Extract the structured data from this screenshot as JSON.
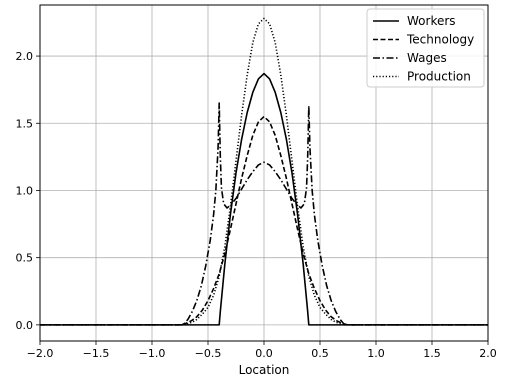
{
  "chart_data": {
    "type": "line",
    "title": "",
    "xlabel": "Location",
    "ylabel": "",
    "xlim": [
      -2.0,
      2.0
    ],
    "ylim": [
      -0.12,
      2.38
    ],
    "grid": true,
    "legend_position": "top-right",
    "x_ticks": [
      -2.0,
      -1.5,
      -1.0,
      -0.5,
      0.0,
      0.5,
      1.0,
      1.5,
      2.0
    ],
    "x_tick_labels": [
      "−2.0",
      "−1.5",
      "−1.0",
      "−0.5",
      "0.0",
      "0.5",
      "1.0",
      "1.5",
      "2.0"
    ],
    "y_ticks": [
      0.0,
      0.5,
      1.0,
      1.5,
      2.0
    ],
    "y_tick_labels": [
      "0.0",
      "0.5",
      "1.0",
      "1.5",
      "2.0"
    ],
    "series": [
      {
        "name": "Workers",
        "dash": "solid",
        "x": [
          -2.0,
          -0.4,
          -0.39,
          -0.35,
          -0.3,
          -0.25,
          -0.2,
          -0.15,
          -0.1,
          -0.05,
          0.0,
          0.05,
          0.1,
          0.15,
          0.2,
          0.25,
          0.3,
          0.35,
          0.39,
          0.4,
          2.0
        ],
        "y": [
          0.0,
          0.0,
          0.1,
          0.45,
          0.82,
          1.13,
          1.38,
          1.58,
          1.73,
          1.83,
          1.87,
          1.83,
          1.73,
          1.58,
          1.38,
          1.13,
          0.82,
          0.45,
          0.1,
          0.0,
          0.0
        ]
      },
      {
        "name": "Technology",
        "dash": "dashed",
        "x": [
          -2.0,
          -0.75,
          -0.7,
          -0.65,
          -0.6,
          -0.55,
          -0.5,
          -0.45,
          -0.4,
          -0.35,
          -0.3,
          -0.25,
          -0.2,
          -0.15,
          -0.1,
          -0.05,
          0.0,
          0.05,
          0.1,
          0.15,
          0.2,
          0.25,
          0.3,
          0.35,
          0.4,
          0.45,
          0.5,
          0.55,
          0.6,
          0.65,
          0.7,
          0.75,
          2.0
        ],
        "y": [
          0.0,
          0.0,
          0.01,
          0.03,
          0.06,
          0.11,
          0.18,
          0.27,
          0.38,
          0.53,
          0.71,
          0.9,
          1.09,
          1.26,
          1.41,
          1.51,
          1.55,
          1.51,
          1.41,
          1.26,
          1.09,
          0.9,
          0.71,
          0.53,
          0.38,
          0.27,
          0.18,
          0.11,
          0.06,
          0.03,
          0.01,
          0.0,
          0.0
        ]
      },
      {
        "name": "Wages",
        "dash": "dashdot",
        "x": [
          -2.0,
          -0.72,
          -0.68,
          -0.64,
          -0.6,
          -0.56,
          -0.52,
          -0.48,
          -0.45,
          -0.43,
          -0.41,
          -0.4,
          -0.39,
          -0.38,
          -0.36,
          -0.33,
          -0.3,
          -0.25,
          -0.2,
          -0.15,
          -0.1,
          -0.05,
          0.0,
          0.05,
          0.1,
          0.15,
          0.2,
          0.25,
          0.3,
          0.33,
          0.36,
          0.38,
          0.39,
          0.4,
          0.41,
          0.43,
          0.45,
          0.48,
          0.52,
          0.56,
          0.6,
          0.64,
          0.68,
          0.72,
          2.0
        ],
        "y": [
          0.0,
          0.0,
          0.04,
          0.1,
          0.18,
          0.29,
          0.44,
          0.63,
          0.82,
          1.0,
          1.32,
          1.65,
          1.25,
          1.02,
          0.9,
          0.87,
          0.89,
          0.94,
          1.01,
          1.08,
          1.14,
          1.19,
          1.21,
          1.19,
          1.14,
          1.08,
          1.01,
          0.94,
          0.89,
          0.87,
          0.9,
          1.02,
          1.25,
          1.63,
          1.32,
          1.0,
          0.82,
          0.63,
          0.44,
          0.29,
          0.18,
          0.1,
          0.04,
          0.0,
          0.0
        ]
      },
      {
        "name": "Production",
        "dash": "dotted",
        "x": [
          -2.0,
          -0.72,
          -0.68,
          -0.64,
          -0.6,
          -0.55,
          -0.5,
          -0.45,
          -0.4,
          -0.35,
          -0.3,
          -0.25,
          -0.2,
          -0.15,
          -0.1,
          -0.05,
          0.0,
          0.05,
          0.1,
          0.15,
          0.2,
          0.25,
          0.3,
          0.35,
          0.4,
          0.45,
          0.5,
          0.55,
          0.6,
          0.64,
          0.68,
          0.72,
          2.0
        ],
        "y": [
          0.0,
          0.0,
          0.01,
          0.02,
          0.04,
          0.08,
          0.13,
          0.22,
          0.36,
          0.58,
          0.88,
          1.22,
          1.56,
          1.86,
          2.1,
          2.24,
          2.28,
          2.24,
          2.1,
          1.86,
          1.56,
          1.22,
          0.88,
          0.58,
          0.36,
          0.22,
          0.13,
          0.08,
          0.04,
          0.02,
          0.01,
          0.0,
          0.0
        ]
      }
    ]
  }
}
